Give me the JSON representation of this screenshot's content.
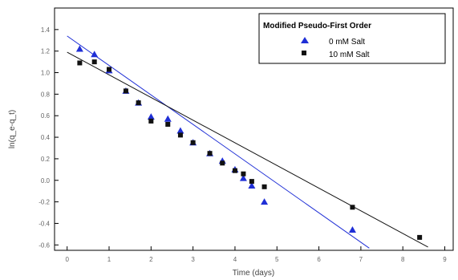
{
  "chart_data": {
    "type": "scatter",
    "title": "",
    "xlabel": "Time (days)",
    "ylabel": "ln(q_e-q_t)",
    "xlim": [
      -0.3,
      9.2
    ],
    "ylim": [
      -0.65,
      1.6
    ],
    "x_ticks": [
      0,
      1,
      2,
      3,
      4,
      5,
      6,
      7,
      8,
      9
    ],
    "x_tick_labels": [
      "0",
      "1",
      "2",
      "3",
      "4",
      "5",
      "6",
      "7",
      "8",
      "9"
    ],
    "y_ticks": [
      -0.6,
      -0.4,
      -0.2,
      0.0,
      0.2,
      0.4,
      0.6,
      0.8,
      1.0,
      1.2,
      1.4
    ],
    "y_tick_labels": [
      "-0.6",
      "-0.4",
      "-0.2",
      "0.0",
      "0.2",
      "0.4",
      "0.6",
      "0.8",
      "1.0",
      "1.2",
      "1.4"
    ],
    "legend": {
      "title": "Modified Pseudo-First Order",
      "position": "top-right",
      "entries": [
        "0 mM Salt",
        "10 mM Salt"
      ]
    },
    "series": [
      {
        "name": "0 mM Salt",
        "marker": "triangle",
        "color": "#1f2fd6",
        "x": [
          0.3,
          0.65,
          1.0,
          1.4,
          1.7,
          2.0,
          2.4,
          2.7,
          3.0,
          3.4,
          3.7,
          4.0,
          4.2,
          4.4,
          4.7,
          6.8
        ],
        "y": [
          1.22,
          1.17,
          1.02,
          0.83,
          0.72,
          0.59,
          0.57,
          0.46,
          0.35,
          0.25,
          0.18,
          0.1,
          0.02,
          -0.05,
          -0.2,
          -0.46
        ],
        "fit": {
          "x": [
            0.0,
            7.2
          ],
          "y": [
            1.34,
            -0.63
          ]
        }
      },
      {
        "name": "10 mM Salt",
        "marker": "square",
        "color": "#111111",
        "x": [
          0.3,
          0.65,
          1.0,
          1.4,
          1.7,
          2.0,
          2.4,
          2.7,
          3.0,
          3.4,
          3.7,
          4.0,
          4.2,
          4.4,
          4.7,
          6.8,
          8.4
        ],
        "y": [
          1.09,
          1.1,
          1.03,
          0.83,
          0.72,
          0.55,
          0.52,
          0.42,
          0.35,
          0.25,
          0.16,
          0.09,
          0.06,
          -0.01,
          -0.06,
          -0.25,
          -0.53
        ],
        "fit": {
          "x": [
            0.0,
            8.6
          ],
          "y": [
            1.19,
            -0.62
          ]
        }
      }
    ]
  }
}
